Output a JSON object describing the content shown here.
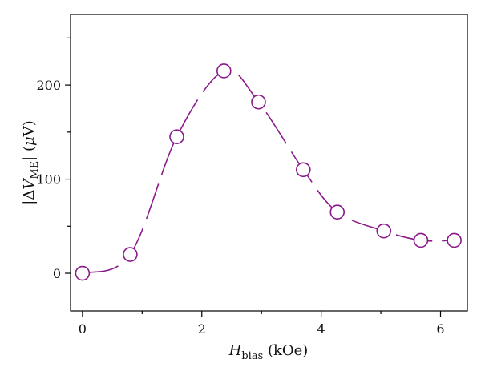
{
  "colors": {
    "series": "#8a1a8a",
    "axis": "#000000"
  },
  "chart_data": {
    "type": "scatter",
    "title": "",
    "xlabel": {
      "main": "H",
      "sub": "bias",
      "unit": " (kOe)"
    },
    "ylabel": {
      "prefix": "|Δ",
      "main": "V",
      "sub": "ME",
      "suffix": "| (",
      "greek": "μ",
      "unit": "V)"
    },
    "xlim": [
      -0.2,
      6.45
    ],
    "ylim": [
      -40,
      275
    ],
    "xticks": [
      0,
      2,
      4,
      6
    ],
    "xtick_labels": [
      "0",
      "2",
      "4",
      "6"
    ],
    "yticks": [
      0,
      100,
      200
    ],
    "ytick_labels": [
      "0",
      "100",
      "200"
    ],
    "grid": false,
    "legend": "none",
    "series": [
      {
        "marker": "open-circle",
        "line": "dashed-smooth",
        "x": [
          0.0,
          0.8,
          1.58,
          2.37,
          2.95,
          3.7,
          4.27,
          5.05,
          5.67,
          6.23
        ],
        "y": [
          0,
          20,
          145,
          215,
          182,
          110,
          65,
          45,
          35,
          35
        ]
      }
    ]
  }
}
